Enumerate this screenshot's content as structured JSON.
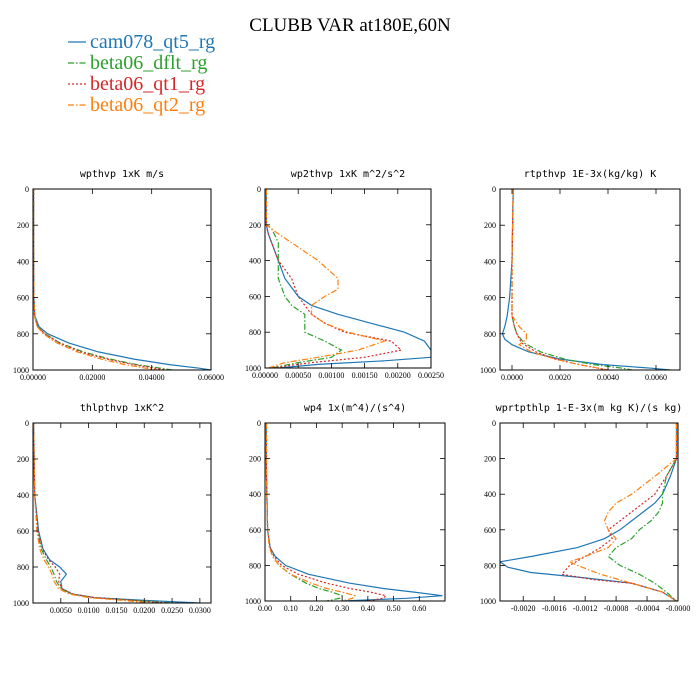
{
  "figure": {
    "title": "CLUBB VAR at180E,60N"
  },
  "legend": [
    {
      "label": "cam078_qt5_rg",
      "color": "#1f77b4",
      "dash": "solid"
    },
    {
      "label": "beta06_dflt_rg",
      "color": "#2ca02c",
      "dash": "dashdot"
    },
    {
      "label": "beta06_qt1_rg",
      "color": "#d62728",
      "dash": "dotted"
    },
    {
      "label": "beta06_qt2_rg",
      "color": "#ff7f0e",
      "dash": "dashdot"
    }
  ],
  "chart_data": [
    {
      "type": "line",
      "title": "wpthvp  1xK m/s",
      "xlim": [
        0,
        0.06
      ],
      "ylim": [
        1000,
        0
      ],
      "xticks": [
        "0.00000",
        "0.02000",
        "0.04000",
        "0.06000"
      ],
      "yticks": [
        "0",
        "200",
        "400",
        "600",
        "800",
        "1000"
      ],
      "xtick_values": [
        0,
        0.02,
        0.04,
        0.06
      ],
      "ytick_values": [
        0,
        200,
        400,
        600,
        800,
        1000
      ],
      "series": [
        {
          "y": [
            0,
            300,
            600,
            700,
            760,
            800,
            850,
            900,
            940,
            970,
            990,
            1000
          ],
          "x": [
            0.0002,
            0.0002,
            0.0003,
            0.0006,
            0.002,
            0.005,
            0.012,
            0.022,
            0.034,
            0.046,
            0.056,
            0.06
          ]
        },
        {
          "y": [
            0,
            300,
            600,
            700,
            760,
            800,
            850,
            900,
            940,
            970,
            990,
            1000
          ],
          "x": [
            0.0002,
            0.0002,
            0.0003,
            0.0005,
            0.0015,
            0.004,
            0.009,
            0.017,
            0.026,
            0.035,
            0.043,
            0.047
          ]
        },
        {
          "y": [
            0,
            300,
            600,
            700,
            760,
            800,
            850,
            900,
            940,
            970,
            990,
            1000
          ],
          "x": [
            0.0002,
            0.0002,
            0.0003,
            0.0005,
            0.0015,
            0.004,
            0.009,
            0.016,
            0.025,
            0.034,
            0.041,
            0.045
          ]
        },
        {
          "y": [
            0,
            300,
            600,
            700,
            760,
            800,
            850,
            900,
            940,
            970,
            990,
            1000
          ],
          "x": [
            0.0002,
            0.0002,
            0.0003,
            0.0005,
            0.0014,
            0.0035,
            0.008,
            0.015,
            0.023,
            0.031,
            0.038,
            0.042
          ]
        }
      ]
    },
    {
      "type": "line",
      "title": "wp2thvp  1xK m^2/s^2",
      "xlim": [
        0,
        0.0025
      ],
      "ylim": [
        1000,
        0
      ],
      "xticks": [
        "0.00000",
        "0.00050",
        "0.00100",
        "0.00150",
        "0.00200",
        "0.00250"
      ],
      "yticks": [
        "0",
        "200",
        "400",
        "600",
        "800",
        "1000"
      ],
      "xtick_values": [
        0,
        0.0005,
        0.001,
        0.0015,
        0.002,
        0.0025
      ],
      "ytick_values": [
        0,
        200,
        400,
        600,
        800,
        1000
      ],
      "series": [
        {
          "y": [
            0,
            200,
            250,
            300,
            400,
            500,
            600,
            650,
            700,
            750,
            800,
            850,
            900,
            940,
            960,
            980,
            1000
          ],
          "x": [
            2e-05,
            2e-05,
            5e-05,
            0.0001,
            0.0002,
            0.0003,
            0.0005,
            0.0007,
            0.0011,
            0.0016,
            0.0021,
            0.0024,
            0.0025,
            0.0025,
            0.0018,
            0.0008,
            0.0002
          ]
        },
        {
          "y": [
            0,
            200,
            220,
            300,
            400,
            500,
            600,
            650,
            700,
            750,
            800,
            850,
            900,
            940,
            970,
            1000
          ],
          "x": [
            2e-05,
            2e-05,
            0.0001,
            0.0002,
            0.0002,
            0.0002,
            0.0003,
            0.0004,
            0.0006,
            0.0006,
            0.0006,
            0.0009,
            0.00115,
            0.001,
            0.0005,
            0.0001
          ]
        },
        {
          "y": [
            0,
            200,
            250,
            300,
            400,
            500,
            600,
            650,
            700,
            750,
            800,
            850,
            900,
            940,
            970,
            1000
          ],
          "x": [
            2e-05,
            2e-05,
            5e-05,
            0.0001,
            0.0002,
            0.0004,
            0.0005,
            0.0006,
            0.0007,
            0.0009,
            0.0012,
            0.0019,
            0.00205,
            0.0015,
            0.0007,
            0.0001
          ]
        },
        {
          "y": [
            0,
            200,
            250,
            300,
            400,
            500,
            560,
            600,
            650,
            700,
            750,
            800,
            850,
            900,
            940,
            970,
            1000
          ],
          "x": [
            2e-05,
            2e-05,
            0.0002,
            0.0004,
            0.0008,
            0.0011,
            0.0011,
            0.0009,
            0.0007,
            0.0007,
            0.0009,
            0.00125,
            0.0018,
            0.0014,
            0.0008,
            0.0003,
            5e-05
          ]
        }
      ]
    },
    {
      "type": "line",
      "title": "rtpthvp  1E-3x(kg/kg) K",
      "xlim": [
        -0.0005,
        0.007
      ],
      "ylim": [
        1000,
        0
      ],
      "xticks": [
        "0.0000",
        "0.0020",
        "0.0040",
        "0.0060"
      ],
      "yticks": [
        "0",
        "200",
        "400",
        "600",
        "800",
        "1000"
      ],
      "xtick_values": [
        0,
        0.002,
        0.004,
        0.006
      ],
      "ytick_values": [
        0,
        200,
        400,
        600,
        800,
        1000
      ],
      "series": [
        {
          "y": [
            0,
            400,
            600,
            700,
            760,
            800,
            830,
            860,
            900,
            940,
            970,
            990,
            1000
          ],
          "x": [
            5e-05,
            0.0,
            -0.0001,
            -0.0002,
            -0.0003,
            -0.0004,
            -0.0003,
            0.0,
            0.0007,
            0.002,
            0.0038,
            0.0058,
            0.0066
          ]
        },
        {
          "y": [
            0,
            400,
            600,
            700,
            760,
            800,
            850,
            900,
            940,
            970,
            990,
            1000
          ],
          "x": [
            5e-05,
            0.0,
            0.0,
            0.0,
            0.0001,
            0.0002,
            0.0005,
            0.0012,
            0.0022,
            0.0034,
            0.0046,
            0.005
          ]
        },
        {
          "y": [
            0,
            400,
            600,
            700,
            760,
            800,
            850,
            900,
            940,
            970,
            990,
            1000
          ],
          "x": [
            5e-05,
            0.0,
            0.0,
            0.0,
            0.0001,
            0.0002,
            0.0004,
            0.001,
            0.0018,
            0.0028,
            0.0036,
            0.004
          ]
        },
        {
          "y": [
            0,
            400,
            600,
            700,
            760,
            800,
            830,
            860,
            900,
            940,
            970,
            990,
            1000
          ],
          "x": [
            5e-05,
            0.0,
            0.0,
            0.0,
            0.0003,
            0.0006,
            0.0006,
            0.0003,
            0.0008,
            0.0018,
            0.0028,
            0.0036,
            0.004
          ]
        }
      ]
    },
    {
      "type": "line",
      "title": "thlpthvp  1xK^2",
      "xlim": [
        0,
        0.032
      ],
      "ylim": [
        1000,
        0
      ],
      "xticks": [
        "0.0050",
        "0.0100",
        "0.0150",
        "0.0200",
        "0.0250",
        "0.0300"
      ],
      "yticks": [
        "0",
        "200",
        "400",
        "600",
        "800",
        "1000"
      ],
      "xtick_values": [
        0.005,
        0.01,
        0.015,
        0.02,
        0.025,
        0.03
      ],
      "ytick_values": [
        0,
        200,
        400,
        600,
        800,
        1000
      ],
      "series": [
        {
          "y": [
            0,
            400,
            600,
            700,
            760,
            800,
            840,
            880,
            920,
            950,
            970,
            985,
            1000
          ],
          "x": [
            0.0001,
            0.0003,
            0.001,
            0.0018,
            0.003,
            0.0048,
            0.006,
            0.005,
            0.0052,
            0.007,
            0.011,
            0.02,
            0.03
          ]
        },
        {
          "y": [
            0,
            400,
            600,
            700,
            760,
            800,
            840,
            880,
            920,
            950,
            970,
            985,
            1000
          ],
          "x": [
            0.0001,
            0.0003,
            0.0008,
            0.0015,
            0.0024,
            0.0032,
            0.0038,
            0.0042,
            0.005,
            0.007,
            0.011,
            0.018,
            0.025
          ]
        },
        {
          "y": [
            0,
            400,
            600,
            700,
            760,
            800,
            840,
            880,
            920,
            950,
            970,
            985,
            1000
          ],
          "x": [
            0.0001,
            0.0003,
            0.0009,
            0.0017,
            0.0028,
            0.004,
            0.0048,
            0.0046,
            0.0052,
            0.0072,
            0.011,
            0.018,
            0.024
          ]
        },
        {
          "y": [
            0,
            400,
            600,
            700,
            760,
            800,
            840,
            880,
            920,
            950,
            970,
            985,
            1000
          ],
          "x": [
            0.0001,
            0.0003,
            0.0007,
            0.0012,
            0.002,
            0.0028,
            0.0034,
            0.0038,
            0.0046,
            0.0065,
            0.01,
            0.016,
            0.021
          ]
        }
      ]
    },
    {
      "type": "line",
      "title": "wp4  1x(m^4)/(s^4)",
      "xlim": [
        0,
        0.7
      ],
      "ylim": [
        1000,
        0
      ],
      "xticks": [
        "0.00",
        "0.10",
        "0.20",
        "0.30",
        "0.40",
        "0.50",
        "0.60"
      ],
      "yticks": [
        "0",
        "200",
        "400",
        "600",
        "800",
        "1000"
      ],
      "xtick_values": [
        0,
        0.1,
        0.2,
        0.3,
        0.4,
        0.5,
        0.6
      ],
      "ytick_values": [
        0,
        200,
        400,
        600,
        800,
        1000
      ],
      "series": [
        {
          "y": [
            0,
            300,
            600,
            700,
            750,
            800,
            850,
            900,
            930,
            950,
            970,
            985,
            1000
          ],
          "x": [
            0.005,
            0.006,
            0.01,
            0.02,
            0.04,
            0.08,
            0.17,
            0.33,
            0.46,
            0.58,
            0.69,
            0.55,
            0.3
          ]
        },
        {
          "y": [
            0,
            300,
            600,
            700,
            750,
            800,
            850,
            900,
            930,
            950,
            970,
            985,
            1000
          ],
          "x": [
            0.005,
            0.006,
            0.01,
            0.018,
            0.03,
            0.055,
            0.1,
            0.16,
            0.21,
            0.26,
            0.3,
            0.29,
            0.24
          ]
        },
        {
          "y": [
            0,
            300,
            600,
            700,
            750,
            800,
            850,
            900,
            930,
            950,
            970,
            985,
            1000
          ],
          "x": [
            0.005,
            0.006,
            0.01,
            0.02,
            0.035,
            0.065,
            0.13,
            0.24,
            0.33,
            0.41,
            0.47,
            0.46,
            0.4
          ]
        },
        {
          "y": [
            0,
            300,
            600,
            700,
            750,
            800,
            850,
            900,
            930,
            950,
            970,
            985,
            1000
          ],
          "x": [
            0.005,
            0.006,
            0.01,
            0.017,
            0.03,
            0.055,
            0.1,
            0.18,
            0.24,
            0.3,
            0.35,
            0.34,
            0.3
          ]
        }
      ]
    },
    {
      "type": "line",
      "title": "wprtpthlp  1-E-3x(m kg K)/(s kg)",
      "xlim": [
        -0.0023,
        0.0
      ],
      "ylim": [
        1000,
        0
      ],
      "xticks": [
        "-0.0020",
        "-0.0016",
        "-0.0012",
        "-0.0008",
        "-0.0004",
        "-0.0000"
      ],
      "yticks": [
        "0",
        "200",
        "400",
        "600",
        "800",
        "1000"
      ],
      "xtick_values": [
        -0.002,
        -0.0016,
        -0.0012,
        -0.0008,
        -0.0004,
        0.0
      ],
      "ytick_values": [
        0,
        200,
        400,
        600,
        800,
        1000
      ],
      "series": [
        {
          "y": [
            0,
            200,
            300,
            400,
            450,
            500,
            550,
            600,
            650,
            700,
            750,
            780,
            810,
            840,
            870,
            900,
            950,
            1000
          ],
          "x": [
            -2e-05,
            -2e-05,
            -0.0001,
            -0.0002,
            -0.0003,
            -0.00045,
            -0.0006,
            -0.00075,
            -0.00095,
            -0.0013,
            -0.0019,
            -0.0023,
            -0.0022,
            -0.0019,
            -0.0012,
            -0.0006,
            -0.0002,
            -2e-05
          ]
        },
        {
          "y": [
            0,
            200,
            300,
            400,
            450,
            500,
            550,
            600,
            650,
            700,
            750,
            800,
            850,
            900,
            950,
            1000
          ],
          "x": [
            -2e-05,
            -2e-05,
            -0.00015,
            -0.0002,
            -0.0002,
            -0.00025,
            -0.00035,
            -0.0005,
            -0.0006,
            -0.0008,
            -0.0009,
            -0.00075,
            -0.0005,
            -0.0003,
            -0.00015,
            -2e-05
          ]
        },
        {
          "y": [
            0,
            200,
            300,
            400,
            450,
            500,
            550,
            600,
            650,
            700,
            750,
            800,
            850,
            880,
            900,
            950,
            1000
          ],
          "x": [
            -2e-05,
            -2e-05,
            -0.00015,
            -0.0003,
            -0.00045,
            -0.0006,
            -0.00075,
            -0.0009,
            -0.00085,
            -0.001,
            -0.0012,
            -0.0014,
            -0.0015,
            -0.0011,
            -0.0006,
            -0.0002,
            -2e-05
          ]
        },
        {
          "y": [
            0,
            200,
            300,
            400,
            450,
            500,
            550,
            600,
            650,
            700,
            750,
            780,
            800,
            850,
            900,
            950,
            1000
          ],
          "x": [
            -2e-05,
            -2e-05,
            -0.0003,
            -0.0006,
            -0.0008,
            -0.0009,
            -0.00095,
            -0.0009,
            -0.0008,
            -0.0009,
            -0.0012,
            -0.0014,
            -0.0013,
            -0.001,
            -0.0006,
            -0.0002,
            -2e-05
          ]
        }
      ]
    }
  ]
}
